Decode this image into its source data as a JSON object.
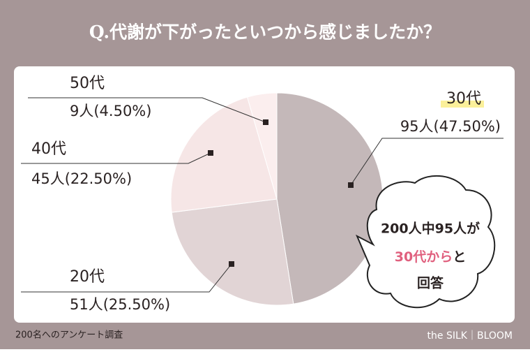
{
  "chart_data": {
    "type": "pie",
    "title": "Q.代謝が下がったといつから感じましたか？",
    "categories": [
      "30代",
      "20代",
      "40代",
      "50代"
    ],
    "values": [
      95,
      51,
      45,
      9
    ],
    "value_labels": [
      "95人(47.50%)",
      "51人(25.50%)",
      "45人(22.50%)",
      "9人(4.50%)"
    ],
    "colors": [
      "#c4b8b9",
      "#e1d4d5",
      "#f6e6e6",
      "#fbeeee"
    ],
    "annotations": [
      "200人中95人が",
      "30代から",
      "と",
      "回答"
    ],
    "footnote": "200名へのアンケート調査",
    "brand": "the SILK｜BLOOM"
  }
}
